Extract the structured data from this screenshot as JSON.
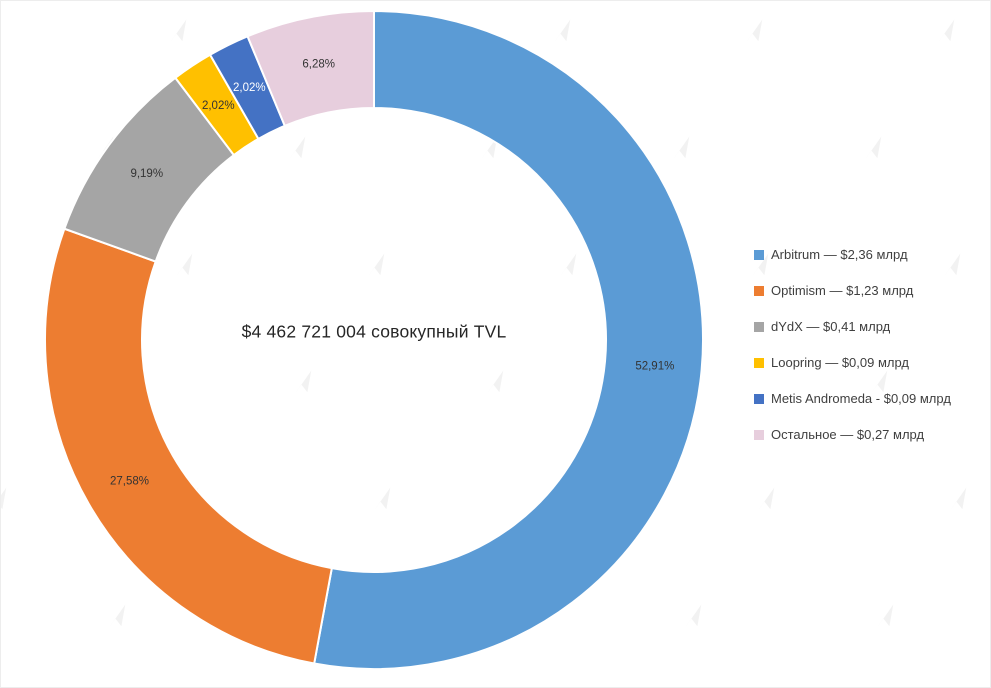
{
  "chart_data": {
    "type": "pie",
    "subtype": "donut",
    "title": "",
    "center_label": "$4 462 721 004 совокупный TVL",
    "categories": [
      "Arbitrum",
      "Optimism",
      "dYdX",
      "Loopring",
      "Metis Andromeda",
      "Остальное"
    ],
    "values": [
      52.91,
      27.58,
      9.19,
      2.02,
      2.02,
      6.28
    ],
    "value_labels": [
      "52,91%",
      "27,58%",
      "9,19%",
      "2,02%",
      "2,02%",
      "6,28%"
    ],
    "amounts": [
      "$2,36 млрд",
      "$1,23 млрд",
      "$0,41 млрд",
      "$0,09 млрд",
      "$0,09 млрд",
      "$0,27 млрд"
    ],
    "legend_labels": [
      "Arbitrum — $2,36 млрд",
      "Optimism — $1,23 млрд",
      "dYdX — $0,41 млрд",
      "Loopring — $0,09 млрд",
      "Metis Andromeda - $0,09 млрд",
      "Остальное — $0,27 млрд"
    ],
    "colors": [
      "#5B9BD5",
      "#ED7D31",
      "#A5A5A5",
      "#FFC000",
      "#4472C4",
      "#E7CEDD"
    ],
    "label_colors": [
      "#333333",
      "#333333",
      "#333333",
      "#333333",
      "#ffffff",
      "#333333"
    ],
    "legend_position": "right",
    "start_angle_deg": 0,
    "direction": "clockwise",
    "units": "%"
  }
}
